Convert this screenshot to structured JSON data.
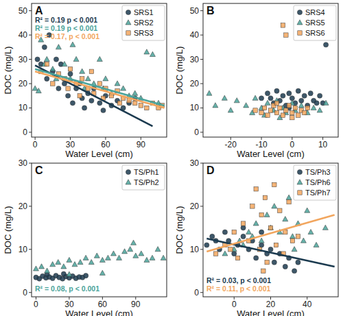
{
  "chart_data": [
    {
      "type": "scatter",
      "title": "A",
      "x_label": "Water Level (cm)",
      "y_label": "DOC (mg/L)",
      "xlim": [
        -3,
        112
      ],
      "xticks": [
        0,
        30,
        60,
        90
      ],
      "ylim": [
        -2,
        53
      ],
      "yticks": [
        0,
        10,
        20,
        30,
        40,
        50
      ],
      "legend": "top-right",
      "series": [
        {
          "name": "SRS1",
          "color": "#1b3a4f",
          "marker": "circle",
          "x": [
            2,
            5,
            8,
            10,
            12,
            15,
            18,
            20,
            22,
            25,
            28,
            30,
            32,
            35,
            38,
            40,
            42,
            45,
            48,
            50,
            55,
            58,
            60,
            65,
            70,
            75,
            80,
            85
          ],
          "values": [
            30,
            28,
            35,
            22,
            40,
            25,
            30,
            18,
            28,
            20,
            15,
            24,
            12,
            18,
            20,
            14,
            10,
            16,
            13,
            18,
            12,
            9,
            15,
            11,
            13,
            10,
            12,
            14
          ]
        },
        {
          "name": "SRS2",
          "color": "#4aa39a",
          "marker": "triangle",
          "x": [
            0,
            3,
            5,
            8,
            10,
            15,
            18,
            20,
            25,
            30,
            32,
            35,
            40,
            42,
            45,
            50,
            55,
            58,
            60,
            65,
            70,
            75,
            80,
            85,
            90,
            95,
            100,
            105
          ],
          "values": [
            18,
            17,
            38,
            28,
            30,
            26,
            22,
            35,
            28,
            22,
            36,
            30,
            25,
            18,
            22,
            20,
            30,
            18,
            22,
            16,
            20,
            18,
            15,
            16,
            14,
            33,
            32,
            12
          ]
        },
        {
          "name": "SRS3",
          "color": "#f2a65e",
          "marker": "square",
          "x": [
            5,
            10,
            15,
            20,
            25,
            28,
            30,
            35,
            38,
            40,
            45,
            48,
            50,
            55,
            58,
            60,
            65,
            70,
            72,
            75,
            80,
            85,
            90,
            95,
            100,
            105,
            108
          ],
          "values": [
            25,
            28,
            20,
            24,
            22,
            18,
            26,
            20,
            15,
            22,
            18,
            25,
            16,
            20,
            14,
            18,
            15,
            17,
            12,
            14,
            13,
            12,
            11,
            10,
            12,
            10,
            11
          ]
        }
      ],
      "fits": [
        {
          "color": "#1b3a4f",
          "x": [
            0,
            100
          ],
          "values": [
            27.5,
            2.5
          ]
        },
        {
          "color": "#4aa39a",
          "x": [
            0,
            110
          ],
          "values": [
            26,
            11
          ]
        },
        {
          "color": "#f2a65e",
          "x": [
            0,
            110
          ],
          "values": [
            25,
            10
          ]
        }
      ],
      "annotations": [
        {
          "text": "R² = 0.19  p < 0.001",
          "color": "#1b3a4f"
        },
        {
          "text": "R² = 0.19  p < 0.001",
          "color": "#4aa39a"
        },
        {
          "text": "R² = 0.17,  p < 0.001",
          "color": "#f2a65e"
        }
      ]
    },
    {
      "type": "scatter",
      "title": "B",
      "x_label": "Water Level (cm)",
      "y_label": "DOC (mg/L)",
      "xlim": [
        -29,
        15
      ],
      "xticks": [
        -20,
        -10,
        0,
        10
      ],
      "ylim": [
        -2,
        53
      ],
      "yticks": [
        0,
        10,
        20,
        30,
        40,
        50
      ],
      "legend": "top-right",
      "series": [
        {
          "name": "SRS4",
          "color": "#1b3a4f",
          "marker": "circle",
          "x": [
            -10,
            -8,
            -6,
            -5,
            -4,
            -3,
            -2,
            -1,
            0,
            1,
            2,
            3,
            4,
            5,
            6,
            7,
            8,
            9,
            10,
            11,
            -7,
            -1
          ],
          "values": [
            14,
            16,
            12,
            17,
            13,
            15,
            11,
            16,
            14,
            12,
            17,
            13,
            15,
            11,
            16,
            13,
            12,
            15,
            12,
            36,
            14,
            10
          ]
        },
        {
          "name": "SRS5",
          "color": "#4aa39a",
          "marker": "triangle",
          "x": [
            -27,
            -25,
            -22,
            -20,
            -18,
            -15,
            -13,
            -12,
            -10,
            -8,
            -6,
            -5,
            -3,
            -2,
            0,
            1,
            3,
            5,
            7,
            9,
            11,
            -9,
            -4
          ],
          "values": [
            16,
            11,
            14,
            9,
            13,
            11,
            8,
            14,
            10,
            12,
            9,
            13,
            10,
            8,
            12,
            9,
            11,
            8,
            10,
            9,
            12,
            7,
            6
          ]
        },
        {
          "name": "SRS6",
          "color": "#f2a65e",
          "marker": "square",
          "x": [
            -12,
            -10,
            -9,
            -8,
            -7,
            -6,
            -5,
            -4,
            -3,
            -2,
            -1,
            0,
            1,
            2,
            3,
            4,
            5,
            -3,
            -2,
            -5,
            0
          ],
          "values": [
            9,
            8,
            10,
            7,
            9,
            11,
            8,
            10,
            7,
            9,
            11,
            8,
            10,
            7,
            9,
            8,
            10,
            44,
            40,
            12,
            6
          ]
        }
      ],
      "fits": [],
      "annotations": []
    },
    {
      "type": "scatter",
      "title": "C",
      "x_label": "Water Level (cm)",
      "y_label": "DOC (mg/L)",
      "xlim": [
        -4,
        118
      ],
      "xticks": [
        0,
        30,
        60,
        90
      ],
      "ylim": [
        -1,
        30
      ],
      "yticks": [
        0,
        10,
        20,
        30
      ],
      "legend": "top-right",
      "series": [
        {
          "name": "TS/Ph1",
          "color": "#1b3a4f",
          "marker": "circle",
          "x": [
            0,
            3,
            6,
            9,
            12,
            15,
            18,
            21,
            24,
            27,
            30,
            33,
            36,
            39,
            42,
            45,
            10,
            25
          ],
          "values": [
            3.5,
            3.2,
            3.8,
            3.4,
            3.6,
            3.3,
            3.9,
            3.5,
            3.2,
            3.7,
            3.4,
            3.8,
            3.3,
            3.6,
            3.5,
            3.9,
            4.2,
            4.3
          ]
        },
        {
          "name": "TS/Ph2",
          "color": "#4aa39a",
          "marker": "triangle",
          "x": [
            0,
            5,
            10,
            15,
            20,
            25,
            30,
            35,
            40,
            45,
            50,
            55,
            60,
            65,
            70,
            75,
            80,
            85,
            88,
            90,
            95,
            100,
            105,
            110,
            115,
            60,
            30
          ],
          "values": [
            5.5,
            6,
            5,
            6.5,
            7,
            6,
            7.5,
            6.5,
            7,
            8,
            7,
            8.5,
            7.5,
            8,
            9,
            8,
            9.5,
            10,
            11.5,
            8.5,
            9,
            7.5,
            8,
            10,
            8,
            4.5,
            4.2
          ]
        }
      ],
      "fits": [],
      "annotations": [
        {
          "text": "R² = 0.08,  p < 0.001",
          "color": "#4aa39a"
        }
      ]
    },
    {
      "type": "scatter",
      "title": "D",
      "x_label": "Water Level (cm)",
      "y_label": "DOC (mg/L)",
      "xlim": [
        -17,
        57
      ],
      "xticks": [
        0,
        20,
        40
      ],
      "ylim": [
        -1,
        30
      ],
      "yticks": [
        0,
        10,
        20,
        30
      ],
      "legend": "top-right",
      "series": [
        {
          "name": "TS/Ph3",
          "color": "#1b3a4f",
          "marker": "circle",
          "x": [
            -15,
            -12,
            -10,
            -8,
            -5,
            -3,
            0,
            2,
            5,
            8,
            10,
            12,
            15,
            18,
            20,
            22,
            25,
            28,
            30,
            33,
            35,
            5,
            15
          ],
          "values": [
            11,
            13,
            12,
            10,
            14,
            12,
            9,
            11,
            13,
            10,
            12,
            8,
            11,
            9,
            10,
            7,
            9,
            6,
            8,
            5,
            7,
            15,
            14
          ]
        },
        {
          "name": "TS/Ph6",
          "color": "#4aa39a",
          "marker": "triangle",
          "x": [
            -5,
            0,
            3,
            5,
            8,
            10,
            12,
            15,
            18,
            20,
            22,
            25,
            28,
            30,
            32,
            35,
            38,
            40,
            42,
            45,
            48,
            50,
            33
          ],
          "values": [
            9,
            10,
            12,
            11,
            14,
            13,
            16,
            12,
            18,
            15,
            20,
            14,
            17,
            22,
            13,
            16,
            12,
            19,
            14,
            11,
            23,
            15,
            10
          ]
        },
        {
          "name": "TS/Ph7",
          "color": "#f2a65e",
          "marker": "square",
          "x": [
            -10,
            -5,
            -2,
            0,
            2,
            5,
            8,
            10,
            12,
            14,
            15,
            17,
            18,
            20,
            22,
            23,
            25,
            27,
            28,
            30,
            32,
            35,
            16
          ],
          "values": [
            9,
            11,
            10,
            14,
            8,
            16,
            12,
            20,
            24,
            10,
            18,
            22,
            7,
            15,
            25,
            11,
            19,
            9,
            14,
            21,
            12,
            13,
            5
          ]
        }
      ],
      "fits": [
        {
          "color": "#1b3a4f",
          "x": [
            -15,
            55
          ],
          "values": [
            12.5,
            6
          ]
        },
        {
          "color": "#f2a65e",
          "x": [
            -15,
            55
          ],
          "values": [
            9.5,
            18
          ]
        }
      ],
      "annotations": [
        {
          "text": "R² = 0.03,  p < 0.001",
          "color": "#1b3a4f"
        },
        {
          "text": "R² = 0.11,  p < 0.001",
          "color": "#f2a65e"
        }
      ]
    }
  ]
}
